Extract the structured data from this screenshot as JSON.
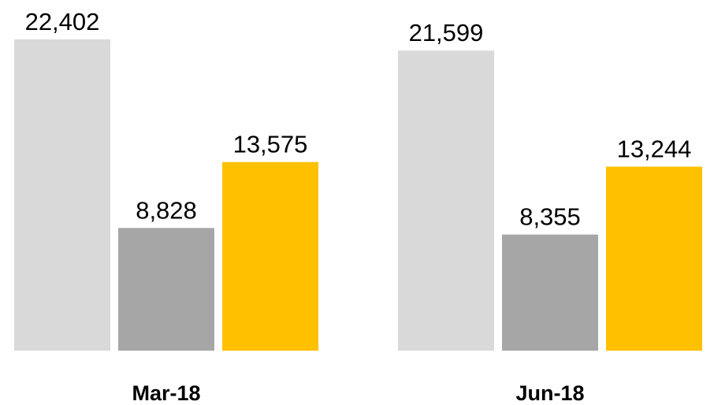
{
  "chart_data": {
    "type": "bar",
    "categories": [
      "Mar-18",
      "Jun-18"
    ],
    "series": [
      {
        "color": "#d9d9d9",
        "values": [
          22402,
          21599
        ],
        "value_labels": [
          "22,402",
          "21,599"
        ]
      },
      {
        "color": "#a6a6a6",
        "values": [
          8828,
          8355
        ],
        "value_labels": [
          "8,828",
          "8,355"
        ]
      },
      {
        "color": "#ffc000",
        "values": [
          13575,
          13244
        ],
        "value_labels": [
          "13,575",
          "13,244"
        ]
      }
    ]
  }
}
